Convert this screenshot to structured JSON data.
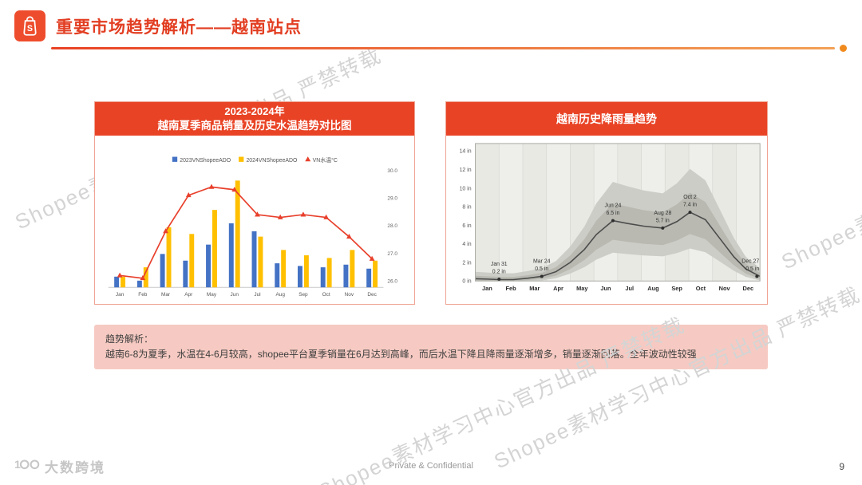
{
  "colors": {
    "accent": "#EE4D2D",
    "panel_header_red": "#E94325",
    "title_red": "#E23E22",
    "bar_blue": "#4472C4",
    "bar_yellow": "#FFC000",
    "temp_line_red": "#E8402C",
    "analysis_bg": "#F6CAC2"
  },
  "header": {
    "title": "重要市场趋势解析——越南站点"
  },
  "watermark": {
    "text": "Shopee素材学习中心官方出品 严禁转载"
  },
  "chart_data": [
    {
      "type": "bar",
      "title": "2023-2024年 越南夏季商品销量及历史水温趋势对比图",
      "title_line1": "2023-2024年",
      "title_line2": "越南夏季商品销量及历史水温趋势对比图",
      "categories": [
        "Jan",
        "Feb",
        "Mar",
        "Apr",
        "May",
        "Jun",
        "Jul",
        "Aug",
        "Sep",
        "Oct",
        "Nov",
        "Dec"
      ],
      "series": [
        {
          "name": "2023VNShopeeADO",
          "kind": "bar",
          "color": "#4472C4",
          "values": [
            8,
            5,
            25,
            20,
            32,
            48,
            42,
            18,
            16,
            15,
            17,
            14
          ]
        },
        {
          "name": "2024VNShopeeADO",
          "kind": "bar",
          "color": "#FFC000",
          "values": [
            8,
            15,
            45,
            40,
            58,
            80,
            38,
            28,
            24,
            22,
            28,
            20
          ]
        },
        {
          "name": "VN水温°C",
          "kind": "line",
          "color": "#E8402C",
          "values": [
            26.2,
            26.1,
            27.8,
            29.1,
            29.4,
            29.3,
            28.4,
            28.3,
            28.4,
            28.3,
            27.6,
            26.8
          ]
        }
      ],
      "bar_ylim": [
        0,
        90
      ],
      "right_axis": {
        "min": 26.0,
        "max": 30.0,
        "ticks": [
          26,
          27,
          28,
          29,
          30
        ]
      },
      "legend_position": "top"
    },
    {
      "type": "area",
      "title": "越南历史降雨量趋势",
      "x_labels": [
        "Jan",
        "Feb",
        "Mar",
        "Apr",
        "May",
        "Jun",
        "Jul",
        "Aug",
        "Sep",
        "Oct",
        "Nov",
        "Dec"
      ],
      "y_ticks": [
        0,
        2,
        4,
        6,
        8,
        10,
        12,
        14
      ],
      "y_unit": "in",
      "ylim": [
        0,
        14.8
      ],
      "mean_curve": [
        [
          0,
          0.25
        ],
        [
          0.5,
          0.2
        ],
        [
          1,
          0.15
        ],
        [
          1.6,
          0.15
        ],
        [
          2.2,
          0.3
        ],
        [
          2.8,
          0.5
        ],
        [
          3.4,
          1.0
        ],
        [
          4,
          2.0
        ],
        [
          4.6,
          3.4
        ],
        [
          5.1,
          5.0
        ],
        [
          5.8,
          6.5
        ],
        [
          6.4,
          6.2
        ],
        [
          7.1,
          5.9
        ],
        [
          7.9,
          5.7
        ],
        [
          8.5,
          6.4
        ],
        [
          9.05,
          7.4
        ],
        [
          9.7,
          6.6
        ],
        [
          10.3,
          4.6
        ],
        [
          10.9,
          2.6
        ],
        [
          11.4,
          1.3
        ],
        [
          12,
          0.5
        ]
      ],
      "annotations": [
        {
          "date": "Jan 31",
          "value": "0.2 in",
          "x": 1.0,
          "y": 0.2,
          "anchor": "middle"
        },
        {
          "date": "Mar 24",
          "value": "0.5 in",
          "x": 2.8,
          "y": 0.5,
          "anchor": "middle"
        },
        {
          "date": "Jun 24",
          "value": "6.5 in",
          "x": 5.8,
          "y": 6.5,
          "anchor": "middle"
        },
        {
          "date": "Aug 28",
          "value": "5.7 in",
          "x": 7.9,
          "y": 5.7,
          "anchor": "middle"
        },
        {
          "date": "Oct 2",
          "value": "7.4 in",
          "x": 9.05,
          "y": 7.4,
          "anchor": "middle"
        },
        {
          "date": "Dec 27",
          "value": "0.5 in",
          "x": 11.87,
          "y": 0.5,
          "anchor": "end"
        }
      ]
    }
  ],
  "analysis": {
    "title": "趋势解析：",
    "body": "越南6-8为夏季，水温在4-6月较高，shopee平台夏季销量在6月达到高峰，而后水温下降且降雨量逐渐增多，销量逐渐回落。全年波动性较强"
  },
  "footer": {
    "brand": "大数跨境",
    "confidential": "Private & Confidential",
    "page_number": "9"
  }
}
